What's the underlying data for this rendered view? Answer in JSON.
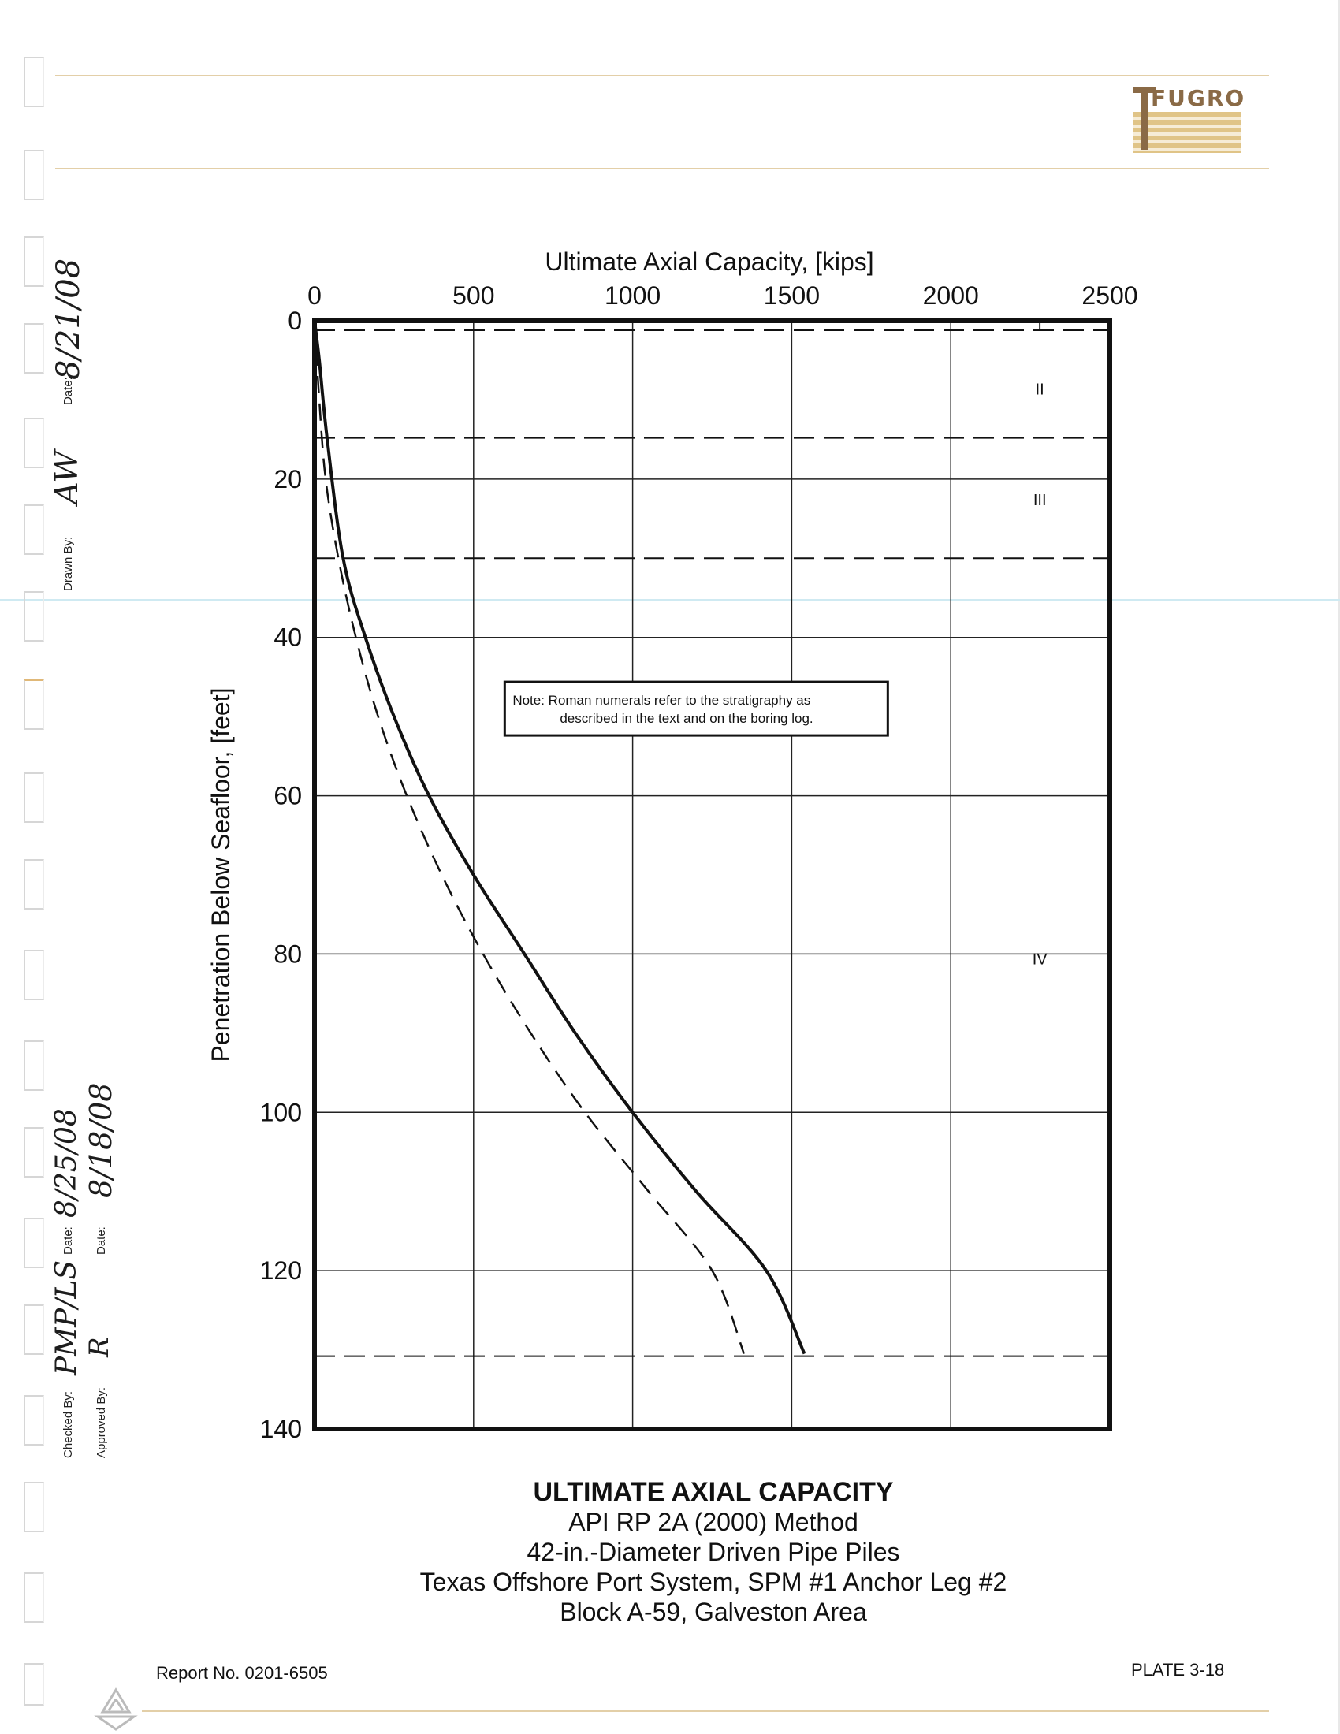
{
  "header": {
    "logo_text": "FUGRO"
  },
  "signoff": {
    "date_label": "Date:",
    "drawn_by_label": "Drawn By:",
    "drawn_by_initials": "AW",
    "drawn_date": "8/21/08",
    "checked_by_label": "Checked By:",
    "checked_by_initials": "PMP/LS",
    "checked_date": "8/25/08",
    "approved_by_label": "Approved By:",
    "approved_by_initials": "R",
    "approved_date": "8/18/08"
  },
  "chart_data": {
    "type": "line",
    "title": "",
    "xlabel": "Ultimate Axial Capacity, [kips]",
    "ylabel": "Penetration Below Seafloor, [feet]",
    "xlim": [
      0,
      2500
    ],
    "ylim": [
      0,
      140
    ],
    "y_inverted": true,
    "x_axis_position": "top",
    "x_ticks": [
      "0",
      "500",
      "1000",
      "1500",
      "2000",
      "2500"
    ],
    "y_ticks": [
      "0",
      "20",
      "40",
      "60",
      "80",
      "100",
      "120",
      "140"
    ],
    "grid": true,
    "series": [
      {
        "style": "solid",
        "x": [
          0,
          15,
          40,
          90,
          160,
          250,
          360,
          500,
          660,
          820,
          1000,
          1200,
          1420,
          1540
        ],
        "y": [
          0,
          5,
          15,
          30,
          40,
          50,
          60,
          70,
          80,
          90,
          100,
          110,
          120,
          130.5
        ]
      },
      {
        "style": "dashed",
        "x": [
          0,
          15,
          35,
          75,
          130,
          200,
          290,
          400,
          530,
          680,
          850,
          1050,
          1250,
          1350
        ],
        "y": [
          0,
          10,
          20,
          30,
          40,
          50,
          60,
          70,
          80,
          90,
          100,
          110,
          120,
          130.5
        ]
      }
    ],
    "stratigraphy_boundaries": [
      1.2,
      14.8,
      30.0,
      130.8
    ],
    "stratigraphy_labels": [
      {
        "label": "I",
        "x": 2270,
        "y": 0.2
      },
      {
        "label": "II",
        "x": 2270,
        "y": 8.5
      },
      {
        "label": "III",
        "x": 2270,
        "y": 22.5
      },
      {
        "label": "IV",
        "x": 2270,
        "y": 80.5
      }
    ],
    "note": {
      "line1": "Note:  Roman numerals refer to the stratigraphy as",
      "line2": "described in the text and on the boring log.",
      "x": 1200,
      "y": 49
    }
  },
  "caption": {
    "title": "ULTIMATE AXIAL CAPACITY",
    "line2": "API RP 2A (2000) Method",
    "line3": "42-in.-Diameter Driven Pipe Piles",
    "line4": "Texas Offshore Port System, SPM #1 Anchor Leg #2",
    "line5": "Block A-59, Galveston Area"
  },
  "footer": {
    "report_no": "Report No. 0201-6505",
    "plate": "PLATE 3-18"
  }
}
